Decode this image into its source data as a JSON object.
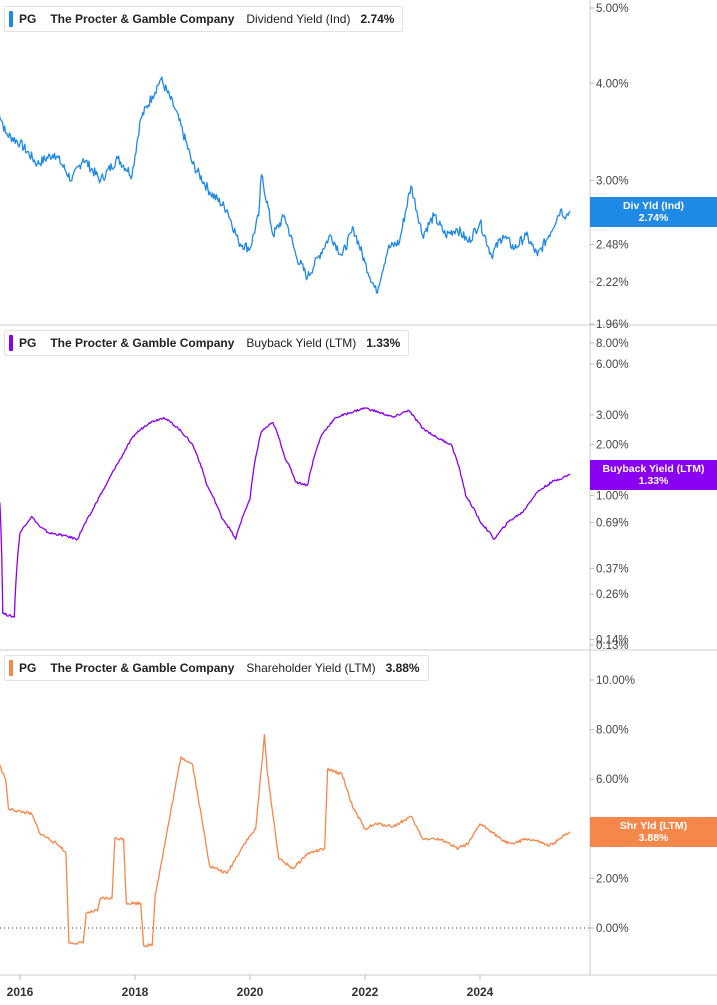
{
  "legends": [
    {
      "ticker": "PG",
      "company": "The Procter & Gamble Company",
      "metric": "Dividend Yield (Ind)",
      "value": "2.74%"
    },
    {
      "ticker": "PG",
      "company": "The Procter & Gamble Company",
      "metric": "Buyback Yield (LTM)",
      "value": "1.33%"
    },
    {
      "ticker": "PG",
      "company": "The Procter & Gamble Company",
      "metric": "Shareholder Yield (LTM)",
      "value": "3.88%"
    }
  ],
  "callouts": [
    {
      "label": "Div Yld (Ind)",
      "value": "2.74%"
    },
    {
      "label": "Buyback Yield (LTM)",
      "value": "1.33%"
    },
    {
      "label": "Shr Yld (LTM)",
      "value": "3.88%"
    }
  ],
  "colors": {
    "dividend": "#1f8ae6",
    "buyback": "#8a00f0",
    "shareholder": "#f5874a",
    "grid": "#cccccc"
  },
  "x_ticks": [
    "2016",
    "2018",
    "2020",
    "2022",
    "2024"
  ],
  "chart_data": [
    {
      "type": "line",
      "scale": "log",
      "ylim": [
        1.96,
        5.0
      ],
      "y_ticks": [
        "5.00%",
        "4.00%",
        "3.00%",
        "2.48%",
        "2.22%",
        "1.96%"
      ],
      "y_tick_values": [
        5.0,
        4.0,
        3.0,
        2.48,
        2.22,
        1.96
      ],
      "series": [
        {
          "name": "Dividend Yield (Ind)",
          "x": [
            2015.6,
            2015.75,
            2016.0,
            2016.3,
            2016.6,
            2016.9,
            2017.1,
            2017.4,
            2017.7,
            2017.95,
            2018.1,
            2018.3,
            2018.45,
            2018.7,
            2019.0,
            2019.3,
            2019.6,
            2019.8,
            2020.0,
            2020.15,
            2020.2,
            2020.4,
            2020.6,
            2020.8,
            2021.0,
            2021.2,
            2021.4,
            2021.6,
            2021.8,
            2022.0,
            2022.2,
            2022.4,
            2022.6,
            2022.8,
            2023.0,
            2023.2,
            2023.4,
            2023.6,
            2023.8,
            2024.0,
            2024.2,
            2024.4,
            2024.6,
            2024.8,
            2025.0,
            2025.2,
            2025.4,
            2025.5,
            2025.57
          ],
          "y": [
            3.75,
            3.45,
            3.35,
            3.15,
            3.25,
            3.0,
            3.2,
            3.0,
            3.2,
            3.05,
            3.6,
            3.85,
            4.05,
            3.7,
            3.15,
            2.9,
            2.75,
            2.5,
            2.45,
            2.7,
            3.05,
            2.55,
            2.7,
            2.4,
            2.25,
            2.4,
            2.55,
            2.4,
            2.6,
            2.35,
            2.15,
            2.45,
            2.5,
            2.95,
            2.55,
            2.7,
            2.55,
            2.6,
            2.5,
            2.65,
            2.4,
            2.55,
            2.45,
            2.55,
            2.4,
            2.55,
            2.75,
            2.7,
            2.74
          ]
        }
      ]
    },
    {
      "type": "line",
      "scale": "log",
      "ylim": [
        0.13,
        8.0
      ],
      "y_ticks": [
        "8.00%",
        "6.00%",
        "3.00%",
        "2.00%",
        "1.00%",
        "0.69%",
        "0.37%",
        "0.26%",
        "0.14%",
        "0.13%"
      ],
      "y_tick_values": [
        8.0,
        6.0,
        3.0,
        2.0,
        1.0,
        0.69,
        0.37,
        0.26,
        0.14,
        0.13
      ],
      "series": [
        {
          "name": "Buyback Yield (LTM)",
          "x": [
            2015.6,
            2015.65,
            2015.7,
            2015.9,
            2016.0,
            2016.2,
            2016.35,
            2016.5,
            2016.75,
            2017.0,
            2017.25,
            2017.5,
            2017.75,
            2018.0,
            2018.25,
            2018.5,
            2018.75,
            2019.0,
            2019.25,
            2019.5,
            2019.75,
            2020.0,
            2020.2,
            2020.4,
            2020.6,
            2020.8,
            2021.0,
            2021.25,
            2021.5,
            2021.75,
            2022.0,
            2022.25,
            2022.5,
            2022.75,
            2023.0,
            2023.25,
            2023.5,
            2023.75,
            2024.0,
            2024.25,
            2024.5,
            2024.75,
            2025.0,
            2025.25,
            2025.5,
            2025.57
          ],
          "y": [
            0.95,
            0.9,
            0.2,
            0.19,
            0.6,
            0.75,
            0.65,
            0.6,
            0.58,
            0.55,
            0.8,
            1.15,
            1.65,
            2.3,
            2.7,
            2.9,
            2.5,
            2.0,
            1.15,
            0.75,
            0.55,
            0.95,
            2.4,
            2.7,
            1.7,
            1.2,
            1.15,
            2.3,
            2.9,
            3.1,
            3.3,
            3.1,
            2.9,
            3.2,
            2.5,
            2.2,
            2.0,
            1.0,
            0.7,
            0.55,
            0.7,
            0.8,
            1.05,
            1.2,
            1.3,
            1.33
          ]
        }
      ]
    },
    {
      "type": "line",
      "scale": "linear",
      "ylim": [
        -1.9,
        11.0
      ],
      "y_ticks": [
        "10.00%",
        "8.00%",
        "6.00%",
        "4.00%",
        "2.00%",
        "0.00%"
      ],
      "y_tick_values": [
        10.0,
        8.0,
        6.0,
        4.0,
        2.0,
        0.0
      ],
      "zero_line": true,
      "series": [
        {
          "name": "Shareholder Yield (LTM)",
          "x": [
            2015.6,
            2015.75,
            2015.8,
            2016.2,
            2016.35,
            2016.5,
            2016.7,
            2016.8,
            2016.85,
            2017.1,
            2017.15,
            2017.35,
            2017.4,
            2017.6,
            2017.65,
            2017.8,
            2017.85,
            2018.1,
            2018.15,
            2018.3,
            2018.35,
            2018.8,
            2019.0,
            2019.3,
            2019.6,
            2019.9,
            2020.1,
            2020.2,
            2020.25,
            2020.3,
            2020.5,
            2020.75,
            2021.0,
            2021.3,
            2021.35,
            2021.6,
            2021.8,
            2022.0,
            2022.2,
            2022.5,
            2022.8,
            2023.0,
            2023.2,
            2023.4,
            2023.6,
            2023.8,
            2024.0,
            2024.2,
            2024.4,
            2024.6,
            2024.8,
            2025.0,
            2025.2,
            2025.4,
            2025.5,
            2025.57
          ],
          "y": [
            6.8,
            6.0,
            4.8,
            4.6,
            3.8,
            3.6,
            3.3,
            3.0,
            -0.6,
            -0.6,
            0.6,
            0.7,
            1.2,
            1.2,
            3.6,
            3.6,
            1.0,
            1.0,
            -0.7,
            -0.7,
            1.3,
            6.9,
            6.6,
            2.5,
            2.2,
            3.4,
            4.0,
            6.5,
            7.8,
            6.3,
            2.8,
            2.4,
            3.0,
            3.2,
            6.4,
            6.2,
            4.8,
            4.0,
            4.2,
            4.1,
            4.5,
            3.6,
            3.6,
            3.5,
            3.2,
            3.4,
            4.2,
            3.9,
            3.5,
            3.4,
            3.6,
            3.5,
            3.3,
            3.6,
            3.8,
            3.88
          ]
        }
      ]
    }
  ]
}
